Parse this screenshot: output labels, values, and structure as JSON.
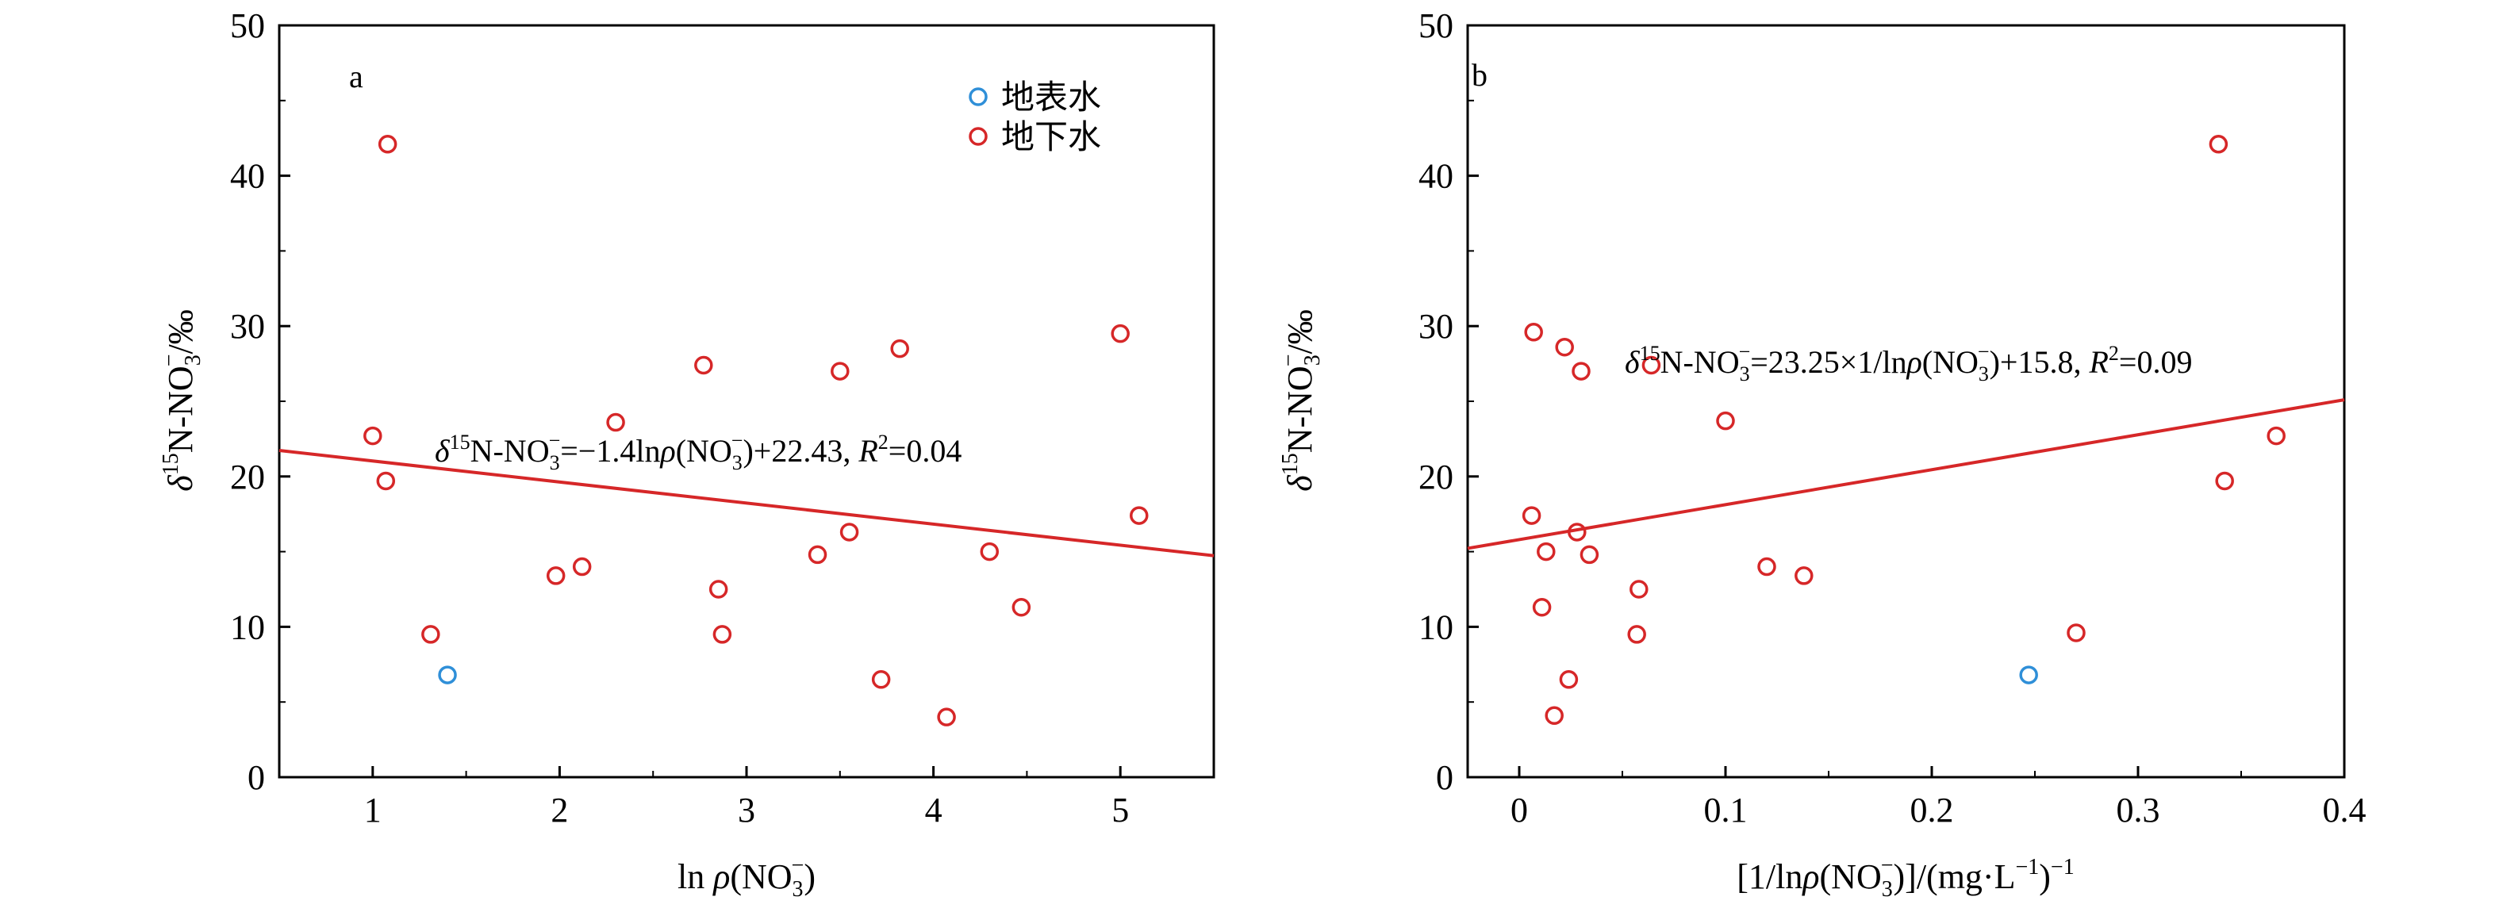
{
  "chart_data": [
    {
      "type": "scatter",
      "panel_label": "a",
      "xlabel": "ln ρ(NO3−)",
      "ylabel": "δ15N-NO3−/‰",
      "xlim": [
        0.5,
        5.5
      ],
      "ylim": [
        0,
        50
      ],
      "xticks": [
        1,
        2,
        3,
        4,
        5
      ],
      "yticks": [
        0,
        10,
        20,
        30,
        40,
        50
      ],
      "legend": {
        "placement": "top-right",
        "entries": [
          "地表水",
          "地下水"
        ]
      },
      "grid": false,
      "series": [
        {
          "name": "地表水",
          "color": "#2f8fd8",
          "points": [
            [
              1.4,
              6.8
            ]
          ]
        },
        {
          "name": "地下水",
          "color": "#d62728",
          "points": [
            [
              1.08,
              42.1
            ],
            [
              1.0,
              22.7
            ],
            [
              1.07,
              19.7
            ],
            [
              1.31,
              9.5
            ],
            [
              1.98,
              13.4
            ],
            [
              2.12,
              14.0
            ],
            [
              2.3,
              23.6
            ],
            [
              2.77,
              27.4
            ],
            [
              2.85,
              12.5
            ],
            [
              2.87,
              9.5
            ],
            [
              3.38,
              14.8
            ],
            [
              3.5,
              27.0
            ],
            [
              3.55,
              16.3
            ],
            [
              3.72,
              6.5
            ],
            [
              3.82,
              28.5
            ],
            [
              4.07,
              4.0
            ],
            [
              4.3,
              15.0
            ],
            [
              4.47,
              11.3
            ],
            [
              5.0,
              29.5
            ],
            [
              5.1,
              17.4
            ]
          ]
        }
      ],
      "fit": {
        "slope": -1.4,
        "intercept": 22.43,
        "color": "#d62728",
        "equation": {
          "delta": "δ",
          "sup15": "15",
          "nno": "N-NO",
          "sub3": "3",
          "supMinus": "−",
          "body": "=−1.4ln",
          "rho": "ρ",
          "paren": "(NO",
          "rest": ")+22.43, ",
          "R": "R",
          "sup2": "2",
          "rval": "=0.04"
        }
      }
    },
    {
      "type": "scatter",
      "panel_label": "b",
      "xlabel": "[1/lnρ(NO3−)]/(mg·L−1)−1",
      "ylabel": "δ15N-NO3−/‰",
      "xlim": [
        -0.025,
        0.4
      ],
      "ylim": [
        0,
        50
      ],
      "xticks": [
        0,
        0.1,
        0.2,
        0.3,
        0.4
      ],
      "yticks": [
        0,
        10,
        20,
        30,
        40,
        50
      ],
      "grid": false,
      "series": [
        {
          "name": "地表水",
          "color": "#2f8fd8",
          "points": [
            [
              0.247,
              6.8
            ]
          ]
        },
        {
          "name": "地下水",
          "color": "#d62728",
          "points": [
            [
              0.339,
              42.1
            ],
            [
              0.007,
              29.6
            ],
            [
              0.022,
              28.6
            ],
            [
              0.03,
              27.0
            ],
            [
              0.064,
              27.4
            ],
            [
              0.1,
              23.7
            ],
            [
              0.367,
              22.7
            ],
            [
              0.342,
              19.7
            ],
            [
              0.006,
              17.4
            ],
            [
              0.028,
              16.3
            ],
            [
              0.013,
              15.0
            ],
            [
              0.034,
              14.8
            ],
            [
              0.12,
              14.0
            ],
            [
              0.138,
              13.4
            ],
            [
              0.058,
              12.5
            ],
            [
              0.011,
              11.3
            ],
            [
              0.27,
              9.6
            ],
            [
              0.057,
              9.5
            ],
            [
              0.024,
              6.5
            ],
            [
              0.017,
              4.1
            ]
          ]
        }
      ],
      "fit": {
        "slope": 23.25,
        "intercept": 15.8,
        "color": "#d62728",
        "equation": {
          "delta": "δ",
          "sup15": "15",
          "nno": "N-NO",
          "sub3": "3",
          "supMinus": "−",
          "body": "=23.25×1/ln",
          "rho": "ρ",
          "paren": "(NO",
          "rest": ")+15.8, ",
          "R": "R",
          "sup2": "2",
          "rval": "=0.09"
        }
      }
    }
  ]
}
